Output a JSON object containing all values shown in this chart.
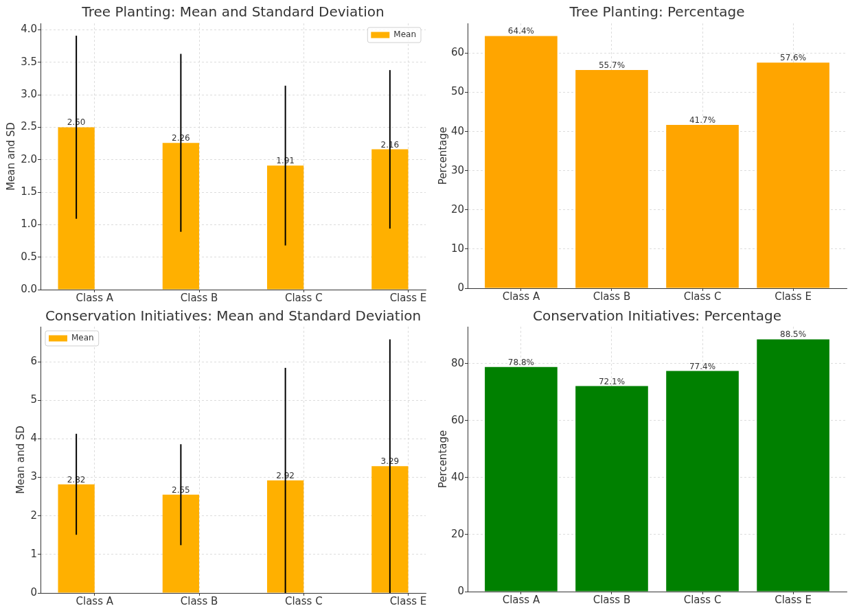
{
  "chart_data": [
    {
      "type": "bar",
      "title": "Tree Planting: Mean and Standard Deviation",
      "ylabel": "Mean and SD",
      "categories": [
        "Class A",
        "Class B",
        "Class C",
        "Class E"
      ],
      "series": [
        {
          "name": "Mean",
          "color": "#ffb000",
          "values": [
            2.5,
            2.26,
            1.91,
            2.16
          ],
          "errors": [
            1.41,
            1.37,
            1.23,
            1.22
          ],
          "value_labels": [
            "2.50",
            "2.26",
            "1.91",
            "2.16"
          ]
        }
      ],
      "ylim": [
        0,
        4.1
      ],
      "yticks": [
        {
          "value": 0,
          "label": "0.0"
        },
        0.5,
        {
          "value": 1,
          "label": "1.0"
        },
        1.5,
        {
          "value": 2,
          "label": "2.0"
        },
        2.5,
        {
          "value": 3,
          "label": "3.0"
        },
        3.5,
        {
          "value": 4,
          "label": "4.0"
        }
      ],
      "grid": true,
      "legend": "top right"
    },
    {
      "type": "bar",
      "title": "Tree Planting: Percentage",
      "ylabel": "Percentage",
      "categories": [
        "Class A",
        "Class B",
        "Class C",
        "Class E"
      ],
      "values": [
        64.4,
        55.7,
        41.7,
        57.6
      ],
      "color": "#ffa500",
      "value_labels": [
        "64.4%",
        "55.7%",
        "41.7%",
        "57.6%"
      ],
      "ylim": [
        0,
        67.62
      ],
      "yticks": [
        0,
        10,
        20,
        30,
        40,
        50,
        60
      ],
      "grid": true
    },
    {
      "type": "bar",
      "title": "Conservation Initiatives: Mean and Standard Deviation",
      "ylabel": "Mean and SD",
      "categories": [
        "Class A",
        "Class B",
        "Class C",
        "Class E"
      ],
      "series": [
        {
          "name": "Mean",
          "color": "#ffb000",
          "values": [
            2.82,
            2.55,
            2.92,
            3.29
          ],
          "errors": [
            1.31,
            1.31,
            2.92,
            3.29
          ],
          "value_labels": [
            "2.82",
            "2.55",
            "2.92",
            "3.29"
          ]
        }
      ],
      "ylim": [
        0,
        6.91
      ],
      "yticks": [
        0,
        1,
        2,
        3,
        4,
        5,
        6
      ],
      "grid": true,
      "legend": "top left"
    },
    {
      "type": "bar",
      "title": "Conservation Initiatives: Percentage",
      "ylabel": "Percentage",
      "categories": [
        "Class A",
        "Class B",
        "Class C",
        "Class E"
      ],
      "values": [
        78.8,
        72.1,
        77.4,
        88.5
      ],
      "color": "#008000",
      "value_labels": [
        "78.8%",
        "72.1%",
        "77.4%",
        "88.5%"
      ],
      "ylim": [
        0,
        92.93
      ],
      "yticks": [
        0,
        20,
        40,
        60,
        80
      ],
      "grid": true
    }
  ]
}
